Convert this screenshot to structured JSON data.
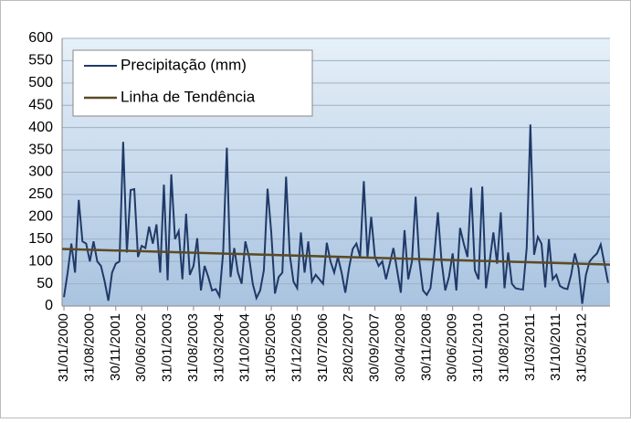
{
  "chart_data": {
    "type": "line",
    "categories": [
      "31/01/2000",
      null,
      null,
      null,
      null,
      null,
      null,
      "31/08/2000",
      null,
      null,
      null,
      null,
      null,
      null,
      "30/11/2001",
      null,
      null,
      null,
      null,
      null,
      null,
      "30/06/2002",
      null,
      null,
      null,
      null,
      null,
      null,
      "31/01/2003",
      null,
      null,
      null,
      null,
      null,
      null,
      "31/08/2003",
      null,
      null,
      null,
      null,
      null,
      null,
      "31/03/2004",
      null,
      null,
      null,
      null,
      null,
      null,
      "31/10/2004",
      null,
      null,
      null,
      null,
      null,
      null,
      "31/05/2005",
      null,
      null,
      null,
      null,
      null,
      null,
      "31/12/2005",
      null,
      null,
      null,
      null,
      null,
      null,
      "31/07/2006",
      null,
      null,
      null,
      null,
      null,
      null,
      "28/02/2007",
      null,
      null,
      null,
      null,
      null,
      null,
      "30/09/2007",
      null,
      null,
      null,
      null,
      null,
      null,
      "30/04/2008",
      null,
      null,
      null,
      null,
      null,
      null,
      "30/11/2008",
      null,
      null,
      null,
      null,
      null,
      null,
      "30/06/2009",
      null,
      null,
      null,
      null,
      null,
      null,
      "31/01/2010",
      null,
      null,
      null,
      null,
      null,
      null,
      "31/08/2010",
      null,
      null,
      null,
      null,
      null,
      null,
      "31/03/2011",
      null,
      null,
      null,
      null,
      null,
      null,
      "31/10/2011",
      null,
      null,
      null,
      null,
      null,
      null,
      "31/05/2012",
      null,
      null,
      null,
      null,
      null,
      null,
      null
    ],
    "series": [
      {
        "name": "Precipitação (mm)",
        "color": "#1f3a68",
        "values": [
          20,
          75,
          140,
          75,
          238,
          145,
          140,
          100,
          145,
          100,
          90,
          55,
          12,
          75,
          95,
          100,
          368,
          120,
          260,
          262,
          110,
          135,
          130,
          178,
          140,
          183,
          75,
          272,
          58,
          295,
          150,
          168,
          60,
          207,
          70,
          90,
          152,
          35,
          90,
          65,
          35,
          38,
          22,
          120,
          355,
          65,
          130,
          75,
          50,
          145,
          110,
          50,
          18,
          35,
          80,
          263,
          165,
          28,
          65,
          75,
          290,
          115,
          55,
          40,
          165,
          75,
          145,
          55,
          70,
          60,
          50,
          142,
          100,
          75,
          110,
          75,
          30,
          85,
          128,
          140,
          110,
          280,
          110,
          200,
          110,
          90,
          100,
          60,
          95,
          130,
          80,
          30,
          170,
          60,
          100,
          245,
          100,
          35,
          25,
          40,
          110,
          210,
          100,
          35,
          65,
          118,
          35,
          175,
          140,
          110,
          265,
          80,
          60,
          268,
          40,
          100,
          165,
          95,
          210,
          40,
          120,
          50,
          40,
          38,
          37,
          130,
          407,
          115,
          155,
          140,
          42,
          150,
          60,
          70,
          45,
          40,
          38,
          70,
          118,
          85,
          5,
          70,
          100,
          110,
          118,
          138,
          95,
          52
        ]
      }
    ],
    "trendline": {
      "name": "Linha de Tendência",
      "color": "#5b4a26",
      "start": 128,
      "end": 93
    },
    "ylim": [
      0,
      600
    ],
    "yticks": [
      0,
      50,
      100,
      150,
      200,
      250,
      300,
      350,
      400,
      450,
      500,
      550,
      600
    ],
    "grid": true,
    "legend": "top-left"
  }
}
